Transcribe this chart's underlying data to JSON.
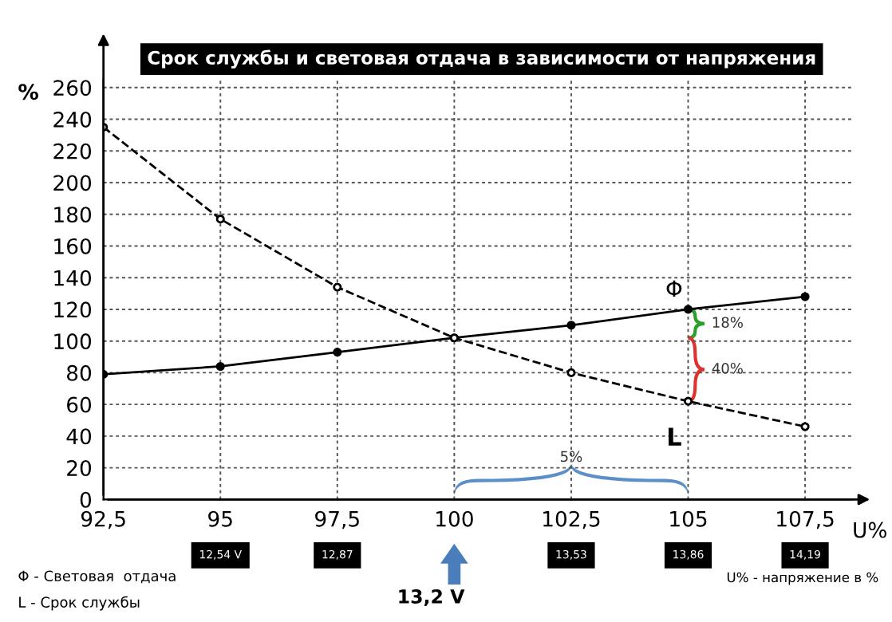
{
  "chart_data": {
    "type": "line",
    "title": "Срок службы и световая отдача в зависимости от напряжения",
    "ylabel": "%",
    "xlabel": "U%",
    "x": [
      92.5,
      95,
      97.5,
      100,
      102.5,
      105,
      107.5
    ],
    "series": [
      {
        "name": "Φ",
        "color": "#000000",
        "values": [
          79,
          84,
          93,
          102,
          110,
          120,
          128
        ],
        "marker": "circle",
        "line_style": "solid"
      },
      {
        "name": "L",
        "color": "#000000",
        "values": [
          235,
          177,
          134,
          102,
          80,
          62,
          46
        ],
        "marker": "circle",
        "line_style": "dashed"
      }
    ],
    "xlim": [
      92.5,
      108.5
    ],
    "ylim": [
      0,
      265
    ],
    "xticks": [
      {
        "value": 92.5,
        "label": "92,5"
      },
      95,
      {
        "value": 97.5,
        "label": "97,5"
      },
      100,
      {
        "value": 102.5,
        "label": "102,5"
      },
      105,
      {
        "value": 107.5,
        "label": "107,5"
      }
    ],
    "yticks": [
      0,
      20,
      40,
      60,
      80,
      100,
      120,
      140,
      160,
      180,
      200,
      220,
      240,
      260
    ],
    "grid": true,
    "annotations": [
      "18%",
      "40%",
      "5%",
      "12,54 V",
      "12,87",
      "13,2 V",
      "13,53",
      "13,86",
      "14,19",
      "Φ - Световая  отдача",
      "L - Срок службы",
      "U% - напряжение в %"
    ]
  }
}
